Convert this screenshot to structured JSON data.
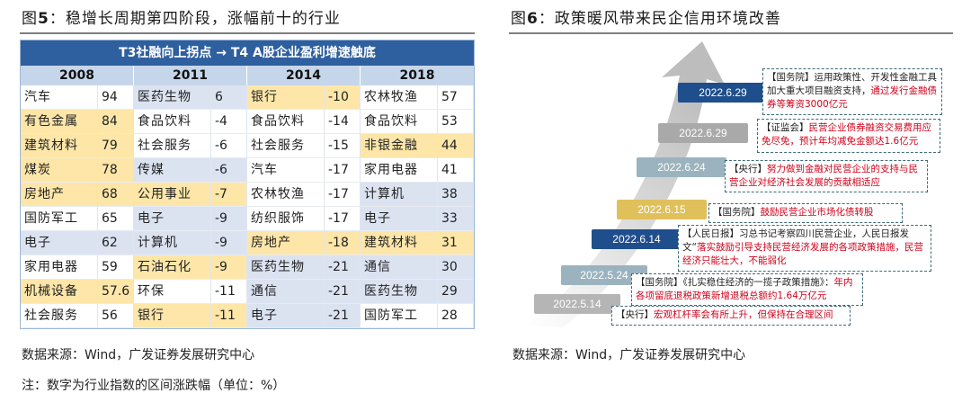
{
  "left_figure": {
    "title_prefix": "图",
    "title_num": "5",
    "title_text": "：稳增长周期第四阶段，涨幅前十的行业",
    "table_header": "T3社融向上拐点 → T4 A股企业盈利增速触底",
    "years": [
      "2008",
      "2011",
      "2014",
      "2018"
    ],
    "rows": [
      [
        [
          "汽车",
          "94",
          ""
        ],
        [
          "医药生物",
          "6",
          "blue"
        ],
        [
          "银行",
          "-10",
          "yellow"
        ],
        [
          "农林牧渔",
          "57",
          ""
        ]
      ],
      [
        [
          "有色金属",
          "84",
          "yellow"
        ],
        [
          "食品饮料",
          "-4",
          ""
        ],
        [
          "食品饮料",
          "-14",
          ""
        ],
        [
          "食品饮料",
          "53",
          ""
        ]
      ],
      [
        [
          "建筑材料",
          "79",
          "yellow"
        ],
        [
          "社会服务",
          "-6",
          ""
        ],
        [
          "社会服务",
          "-15",
          ""
        ],
        [
          "非银金融",
          "44",
          "yellow"
        ]
      ],
      [
        [
          "煤炭",
          "78",
          "yellow"
        ],
        [
          "传媒",
          "-6",
          "blue"
        ],
        [
          "汽车",
          "-17",
          ""
        ],
        [
          "家用电器",
          "41",
          ""
        ]
      ],
      [
        [
          "房地产",
          "68",
          "yellow"
        ],
        [
          "公用事业",
          "-7",
          "yellow"
        ],
        [
          "农林牧渔",
          "-17",
          ""
        ],
        [
          "计算机",
          "38",
          "blue"
        ]
      ],
      [
        [
          "国防军工",
          "65",
          ""
        ],
        [
          "电子",
          "-9",
          "blue"
        ],
        [
          "纺织服饰",
          "-17",
          ""
        ],
        [
          "电子",
          "33",
          "blue"
        ]
      ],
      [
        [
          "电子",
          "62",
          "blue"
        ],
        [
          "计算机",
          "-9",
          "blue"
        ],
        [
          "房地产",
          "-18",
          "yellow"
        ],
        [
          "建筑材料",
          "31",
          "yellow"
        ]
      ],
      [
        [
          "家用电器",
          "59",
          ""
        ],
        [
          "石油石化",
          "-9",
          "yellow"
        ],
        [
          "医药生物",
          "-21",
          "blue"
        ],
        [
          "通信",
          "30",
          "blue"
        ]
      ],
      [
        [
          "机械设备",
          "57.6",
          "yellow"
        ],
        [
          "环保",
          "-11",
          ""
        ],
        [
          "通信",
          "-21",
          "blue"
        ],
        [
          "医药生物",
          "29",
          "blue"
        ]
      ],
      [
        [
          "社会服务",
          "56",
          ""
        ],
        [
          "银行",
          "-11",
          "yellow"
        ],
        [
          "电子",
          "-21",
          "blue"
        ],
        [
          "国防军工",
          "28",
          ""
        ]
      ]
    ],
    "source": "数据来源：Wind，广发证券发展研究中心",
    "note": "注：数字为行业指数的区间涨跌幅（单位：%）"
  },
  "right_figure": {
    "title_prefix": "图",
    "title_num": "6",
    "title_text": "：政策暖风带来民企信用环境改善",
    "source": "数据来源：Wind，广发证券发展研究中心",
    "events": [
      {
        "date": "2022.6.29",
        "color": "#1f4e8c",
        "pre": "【国务院】运用政策性、开发性金融工具加大重大项目融资支持，",
        "red": "通过发行金融债券等筹资3000亿元"
      },
      {
        "date": "2022.6.29",
        "color": "#a9a9a9",
        "pre": "【证监会】",
        "red": "民营企业债券融资交易费用应免尽免，预计年均减免金额达1.6亿元"
      },
      {
        "date": "2022.6.24",
        "color": "#9bb3bf",
        "pre": "【央行】",
        "red": "努力做到金融对民营企业的支持与民营企业对经济社会发展的贡献相适应"
      },
      {
        "date": "2022.6.15",
        "color": "#e0c05a",
        "pre": "【国务院】",
        "red": "鼓励民营企业市场化债转股"
      },
      {
        "date": "2022.6.14",
        "color": "#1f4e8c",
        "pre": "【人民日报】习总书记考察四川民营企业，人民日报发文“",
        "red": "落实鼓励引导支持民营经济发展的各项政策措施，民营经济只能壮大，不能弱化"
      },
      {
        "date": "2022.5.24",
        "color": "#9bb3bf",
        "pre": "【国务院】《扎实稳住经济的一揽子政策措施》：",
        "red": "年内各项留底退税政策新增退税总额约1.64万亿元"
      },
      {
        "date": "2022.5.14",
        "color": "#b5b5b5",
        "pre": "【央行】",
        "red": "宏观杠杆率会有所上升，但保持在合理区间"
      }
    ]
  }
}
